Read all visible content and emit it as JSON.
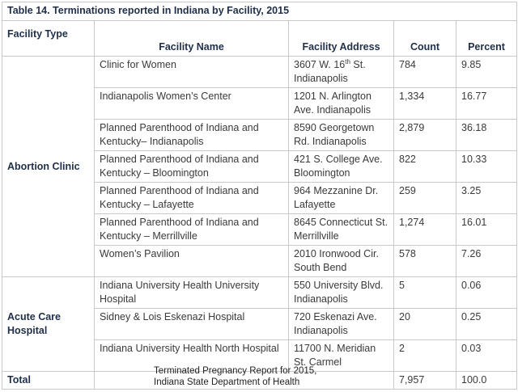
{
  "title": "Table 14. Terminations reported in Indiana by Facility, 2015",
  "headers": {
    "type": "Facility Type",
    "name": "Facility Name",
    "address": "Facility Address",
    "count": "Count",
    "percent": "Percent"
  },
  "groups": [
    {
      "type": "Abortion Clinic",
      "rows": [
        {
          "name": "Clinic for Women",
          "address_pre": "3607 W. 16",
          "address_sup": "th",
          "address_post": " St. Indianapolis",
          "count": "784",
          "percent": "9.85"
        },
        {
          "name": "Indianapolis Women’s Center",
          "address": "1201 N. Arlington Ave. Indianapolis",
          "count": "1,334",
          "percent": "16.77"
        },
        {
          "name": "Planned Parenthood of Indiana and Kentucky– Indianapolis",
          "address": "8590 Georgetown Rd. Indianapolis",
          "count": "2,879",
          "percent": "36.18"
        },
        {
          "name": "Planned Parenthood of Indiana and Kentucky – Bloomington",
          "address": "421 S. College Ave. Bloomington",
          "count": "822",
          "percent": "10.33"
        },
        {
          "name": "Planned Parenthood of Indiana and Kentucky – Lafayette",
          "address": "964 Mezzanine Dr. Lafayette",
          "count": "259",
          "percent": "3.25"
        },
        {
          "name": "Planned Parenthood of Indiana and Kentucky – Merrillville",
          "address": "8645 Connecticut St. Merrillville",
          "count": "1,274",
          "percent": "16.01"
        },
        {
          "name": "Women’s Pavilion",
          "address": "2010 Ironwood Cir. South Bend",
          "count": "578",
          "percent": "7.26"
        }
      ]
    },
    {
      "type": "Acute Care Hospital",
      "rows": [
        {
          "name": "Indiana University Health University Hospital",
          "address": "550 University Blvd. Indianapolis",
          "count": "5",
          "percent": "0.06"
        },
        {
          "name": "Sidney & Lois Eskenazi Hospital",
          "address": "720 Eskenazi Ave. Indianapolis",
          "count": "20",
          "percent": "0.25"
        },
        {
          "name": "Indiana University Health North Hospital",
          "address": "11700 N. Meridian St. Carmel",
          "count": "2",
          "percent": "0.03"
        }
      ]
    }
  ],
  "total": {
    "label": "Total",
    "count": "7,957",
    "percent": "100.0"
  },
  "caption": [
    "Terminated Pregnancy Report for 2015,",
    "Indiana State Department of Health"
  ]
}
